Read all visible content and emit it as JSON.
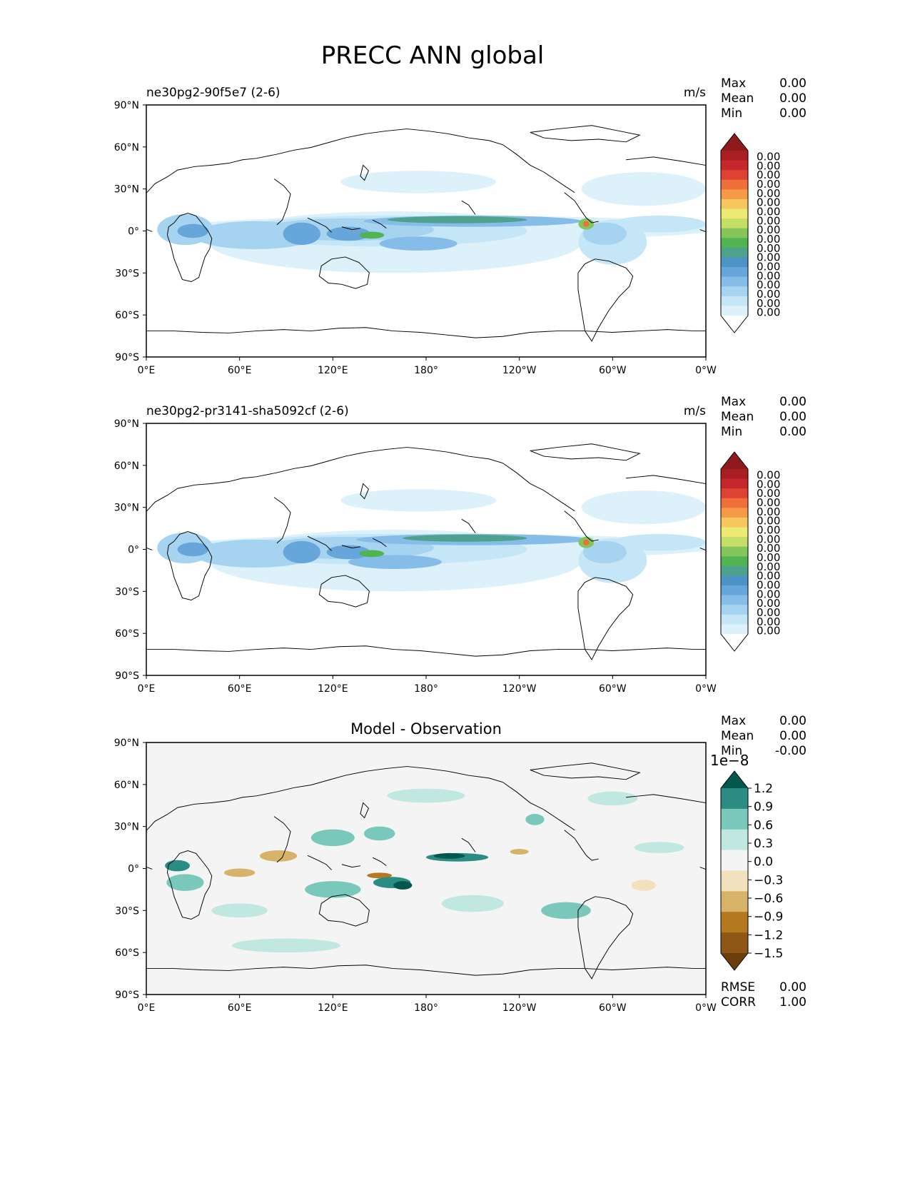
{
  "figure": {
    "title": "PRECC ANN global"
  },
  "x_ticks": [
    "0°E",
    "60°E",
    "120°E",
    "180°",
    "120°W",
    "60°W",
    "0°W"
  ],
  "y_ticks": [
    "90°N",
    "60°N",
    "30°N",
    "0°",
    "30°S",
    "60°S",
    "90°S"
  ],
  "colors": {
    "precip_levels": [
      "#ffffff",
      "#ddf1fa",
      "#c4e6f6",
      "#a6d3f0",
      "#85bde8",
      "#67a6da",
      "#4d93c6",
      "#4ea18d",
      "#52b450",
      "#84c55c",
      "#c4de67",
      "#ecea72",
      "#f5c75e",
      "#f59b48",
      "#ee6f39",
      "#de4232",
      "#c5272c",
      "#a81e23",
      "#8e1a1d"
    ],
    "diff_levels": [
      "#6b3e0d",
      "#8e5715",
      "#b4781f",
      "#d7b36a",
      "#f1e2bd",
      "#f4f4f4",
      "#c1e7e1",
      "#79c8bb",
      "#2a8c82",
      "#03584d"
    ],
    "land_outline": "#000000"
  },
  "chart_data": [
    {
      "type": "heatmap",
      "title": "ne30pg2-90f5e7 (2-6)",
      "units": "m/s",
      "stats": [
        {
          "label": "Max",
          "value": "0.00"
        },
        {
          "label": "Mean",
          "value": "0.00"
        },
        {
          "label": "Min",
          "value": "0.00"
        }
      ],
      "colorbar": {
        "extend": "both",
        "ticks": [
          "0.00",
          "0.00",
          "0.00",
          "0.00",
          "0.00",
          "0.00",
          "0.00",
          "0.00",
          "0.00",
          "0.00",
          "0.00",
          "0.00",
          "0.00",
          "0.00",
          "0.00",
          "0.00",
          "0.00",
          "0.00"
        ]
      },
      "xlim": [
        0,
        360
      ],
      "ylim": [
        -90,
        90
      ],
      "features": [
        {
          "lon": 195,
          "lat": 2,
          "rlon": 175,
          "rlat": 9,
          "level": 1
        },
        {
          "lon": 160,
          "lat": -8,
          "rlon": 120,
          "rlat": 22,
          "level": 1
        },
        {
          "lon": 150,
          "lat": 0,
          "rlon": 95,
          "rlat": 11,
          "level": 2
        },
        {
          "lon": 130,
          "lat": 1,
          "rlon": 55,
          "rlat": 8,
          "level": 3
        },
        {
          "lon": 210,
          "lat": 7,
          "rlon": 70,
          "rlat": 4,
          "level": 4
        },
        {
          "lon": 200,
          "lat": 8,
          "rlon": 45,
          "rlat": 2.5,
          "level": 7
        },
        {
          "lon": 175,
          "lat": -9,
          "rlon": 25,
          "rlat": 5,
          "level": 4
        },
        {
          "lon": 70,
          "lat": -3,
          "rlon": 40,
          "rlat": 10,
          "level": 3
        },
        {
          "lon": 25,
          "lat": 1,
          "rlon": 18,
          "rlat": 11,
          "level": 3
        },
        {
          "lon": 30,
          "lat": 0,
          "rlon": 10,
          "rlat": 5,
          "level": 5
        },
        {
          "lon": 300,
          "lat": -8,
          "rlon": 22,
          "rlat": 16,
          "level": 2
        },
        {
          "lon": 295,
          "lat": -2,
          "rlon": 14,
          "rlat": 8,
          "level": 3
        },
        {
          "lon": 330,
          "lat": 5,
          "rlon": 30,
          "rlat": 6,
          "level": 2
        },
        {
          "lon": 100,
          "lat": -2,
          "rlon": 12,
          "rlat": 8,
          "level": 5
        },
        {
          "lon": 130,
          "lat": -2,
          "rlon": 14,
          "rlat": 5,
          "level": 5
        },
        {
          "lon": 145,
          "lat": -3,
          "rlon": 8,
          "rlat": 2.5,
          "level": 8
        },
        {
          "lon": 283,
          "lat": 5,
          "rlon": 5,
          "rlat": 4,
          "level": 9
        },
        {
          "lon": 283,
          "lat": 5,
          "rlon": 2,
          "rlat": 2,
          "level": 14
        },
        {
          "lon": 320,
          "lat": 30,
          "rlon": 40,
          "rlat": 12,
          "level": 1
        },
        {
          "lon": 175,
          "lat": 35,
          "rlon": 50,
          "rlat": 8,
          "level": 1
        }
      ]
    },
    {
      "type": "heatmap",
      "title": "ne30pg2-pr3141-sha5092cf (2-6)",
      "units": "m/s",
      "stats": [
        {
          "label": "Max",
          "value": "0.00"
        },
        {
          "label": "Mean",
          "value": "0.00"
        },
        {
          "label": "Min",
          "value": "0.00"
        }
      ],
      "colorbar": {
        "extend": "both",
        "ticks": [
          "0.00",
          "0.00",
          "0.00",
          "0.00",
          "0.00",
          "0.00",
          "0.00",
          "0.00",
          "0.00",
          "0.00",
          "0.00",
          "0.00",
          "0.00",
          "0.00",
          "0.00",
          "0.00",
          "0.00",
          "0.00"
        ]
      },
      "xlim": [
        0,
        360
      ],
      "ylim": [
        -90,
        90
      ],
      "features": [
        {
          "lon": 195,
          "lat": 2,
          "rlon": 175,
          "rlat": 9,
          "level": 1
        },
        {
          "lon": 160,
          "lat": -8,
          "rlon": 120,
          "rlat": 22,
          "level": 1
        },
        {
          "lon": 150,
          "lat": 0,
          "rlon": 95,
          "rlat": 11,
          "level": 2
        },
        {
          "lon": 130,
          "lat": 1,
          "rlon": 55,
          "rlat": 8,
          "level": 3
        },
        {
          "lon": 210,
          "lat": 7,
          "rlon": 75,
          "rlat": 4,
          "level": 4
        },
        {
          "lon": 205,
          "lat": 8,
          "rlon": 40,
          "rlat": 2.5,
          "level": 7
        },
        {
          "lon": 160,
          "lat": -9,
          "rlon": 30,
          "rlat": 5,
          "level": 4
        },
        {
          "lon": 70,
          "lat": -3,
          "rlon": 40,
          "rlat": 10,
          "level": 3
        },
        {
          "lon": 25,
          "lat": 1,
          "rlon": 18,
          "rlat": 11,
          "level": 3
        },
        {
          "lon": 30,
          "lat": 0,
          "rlon": 10,
          "rlat": 5,
          "level": 5
        },
        {
          "lon": 300,
          "lat": -8,
          "rlon": 22,
          "rlat": 16,
          "level": 2
        },
        {
          "lon": 295,
          "lat": -2,
          "rlon": 14,
          "rlat": 8,
          "level": 3
        },
        {
          "lon": 330,
          "lat": 5,
          "rlon": 30,
          "rlat": 6,
          "level": 2
        },
        {
          "lon": 100,
          "lat": -2,
          "rlon": 12,
          "rlat": 8,
          "level": 5
        },
        {
          "lon": 130,
          "lat": -2,
          "rlon": 14,
          "rlat": 5,
          "level": 5
        },
        {
          "lon": 145,
          "lat": -3,
          "rlon": 8,
          "rlat": 2.5,
          "level": 8
        },
        {
          "lon": 283,
          "lat": 5,
          "rlon": 5,
          "rlat": 4,
          "level": 9
        },
        {
          "lon": 283,
          "lat": 5,
          "rlon": 2,
          "rlat": 2,
          "level": 14
        },
        {
          "lon": 320,
          "lat": 30,
          "rlon": 40,
          "rlat": 12,
          "level": 1
        },
        {
          "lon": 175,
          "lat": 35,
          "rlon": 50,
          "rlat": 8,
          "level": 1
        }
      ]
    },
    {
      "type": "heatmap",
      "title": "Model - Observation",
      "units": "",
      "stats": [
        {
          "label": "Max",
          "value": "0.00"
        },
        {
          "label": "Mean",
          "value": "0.00"
        },
        {
          "label": "Min",
          "value": "-0.00"
        }
      ],
      "colorbar": {
        "extend": "both",
        "scale_label": "1e−8",
        "ticks": [
          "1.2",
          "0.9",
          "0.6",
          "0.3",
          "0.0",
          "−0.3",
          "−0.6",
          "−0.9",
          "−1.2",
          "−1.5"
        ]
      },
      "bottom_stats": [
        {
          "label": "RMSE",
          "value": "0.00"
        },
        {
          "label": "CORR",
          "value": "1.00"
        }
      ],
      "xlim": [
        0,
        360
      ],
      "ylim": [
        -90,
        90
      ],
      "features": [
        {
          "lon": 200,
          "lat": 8,
          "rlon": 20,
          "rlat": 3,
          "level": 8
        },
        {
          "lon": 195,
          "lat": 9,
          "rlon": 10,
          "rlat": 2,
          "level": 9
        },
        {
          "lon": 158,
          "lat": -10,
          "rlon": 12,
          "rlat": 4,
          "level": 8
        },
        {
          "lon": 165,
          "lat": -12,
          "rlon": 6,
          "rlat": 3,
          "level": 9
        },
        {
          "lon": 20,
          "lat": 2,
          "rlon": 8,
          "rlat": 4,
          "level": 8
        },
        {
          "lon": 120,
          "lat": -15,
          "rlon": 18,
          "rlat": 6,
          "level": 7
        },
        {
          "lon": 60,
          "lat": -3,
          "rlon": 10,
          "rlat": 3,
          "level": 3
        },
        {
          "lon": 85,
          "lat": 9,
          "rlon": 12,
          "rlat": 4,
          "level": 3
        },
        {
          "lon": 150,
          "lat": -5,
          "rlon": 8,
          "rlat": 2,
          "level": 2
        },
        {
          "lon": 240,
          "lat": 12,
          "rlon": 6,
          "rlat": 2,
          "level": 3
        },
        {
          "lon": 320,
          "lat": -12,
          "rlon": 8,
          "rlat": 4,
          "level": 4
        },
        {
          "lon": 120,
          "lat": 22,
          "rlon": 14,
          "rlat": 6,
          "level": 7
        },
        {
          "lon": 150,
          "lat": 25,
          "rlon": 10,
          "rlat": 5,
          "level": 7
        },
        {
          "lon": 25,
          "lat": -10,
          "rlon": 12,
          "rlat": 6,
          "level": 7
        },
        {
          "lon": 250,
          "lat": 35,
          "rlon": 6,
          "rlat": 4,
          "level": 7
        },
        {
          "lon": 270,
          "lat": -30,
          "rlon": 16,
          "rlat": 6,
          "level": 7
        },
        {
          "lon": 210,
          "lat": -25,
          "rlon": 20,
          "rlat": 6,
          "level": 6
        },
        {
          "lon": 60,
          "lat": -30,
          "rlon": 18,
          "rlat": 5,
          "level": 6
        },
        {
          "lon": 330,
          "lat": 15,
          "rlon": 16,
          "rlat": 4,
          "level": 6
        },
        {
          "lon": 180,
          "lat": 52,
          "rlon": 25,
          "rlat": 5,
          "level": 6
        },
        {
          "lon": 300,
          "lat": 50,
          "rlon": 16,
          "rlat": 5,
          "level": 6
        },
        {
          "lon": 90,
          "lat": -55,
          "rlon": 35,
          "rlat": 5,
          "level": 6
        }
      ]
    }
  ]
}
